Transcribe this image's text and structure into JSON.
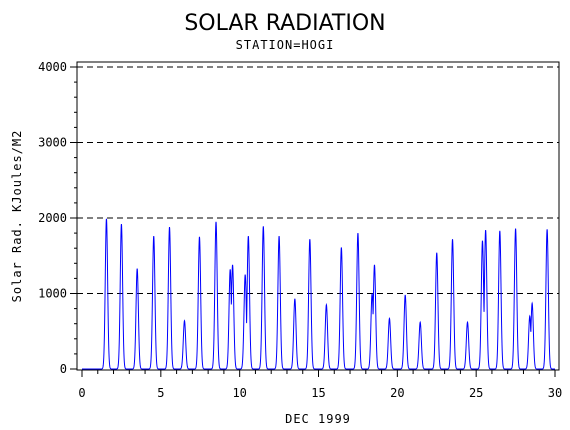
{
  "chart_data": {
    "type": "line",
    "title": "SOLAR RADIATION",
    "subtitle": "STATION=HOGI",
    "xlabel": "DEC 1999",
    "ylabel": "Solar Rad. KJoules/M2",
    "xlim": [
      0,
      30
    ],
    "ylim": [
      0,
      4000
    ],
    "x_ticks": [
      "0",
      "5",
      "10",
      "15",
      "20",
      "25",
      "30"
    ],
    "y_ticks": [
      "0",
      "1000",
      "2000",
      "3000",
      "4000"
    ],
    "reference_lines": [
      1000,
      2000,
      3000,
      4000
    ],
    "line_color": "#0000ff",
    "daily_peaks": [
      {
        "day": 1,
        "peaks": [
          [
            0.55,
            1990
          ]
        ]
      },
      {
        "day": 2,
        "peaks": [
          [
            0.5,
            1920
          ]
        ]
      },
      {
        "day": 3,
        "peaks": [
          [
            0.5,
            1330
          ]
        ]
      },
      {
        "day": 4,
        "peaks": [
          [
            0.55,
            1760
          ]
        ]
      },
      {
        "day": 5,
        "peaks": [
          [
            0.55,
            1880
          ]
        ]
      },
      {
        "day": 6,
        "peaks": [
          [
            0.5,
            640
          ]
        ]
      },
      {
        "day": 7,
        "peaks": [
          [
            0.45,
            1750
          ]
        ]
      },
      {
        "day": 8,
        "peaks": [
          [
            0.5,
            1950
          ]
        ]
      },
      {
        "day": 9,
        "peaks": [
          [
            0.4,
            1320
          ],
          [
            0.55,
            1380
          ]
        ]
      },
      {
        "day": 10,
        "peaks": [
          [
            0.35,
            1250
          ],
          [
            0.55,
            1760
          ]
        ]
      },
      {
        "day": 11,
        "peaks": [
          [
            0.5,
            1890
          ]
        ]
      },
      {
        "day": 12,
        "peaks": [
          [
            0.5,
            1760
          ]
        ]
      },
      {
        "day": 13,
        "peaks": [
          [
            0.5,
            930
          ]
        ]
      },
      {
        "day": 14,
        "peaks": [
          [
            0.45,
            1720
          ]
        ]
      },
      {
        "day": 15,
        "peaks": [
          [
            0.5,
            850
          ]
        ]
      },
      {
        "day": 16,
        "peaks": [
          [
            0.45,
            1610
          ]
        ]
      },
      {
        "day": 17,
        "peaks": [
          [
            0.5,
            1800
          ]
        ]
      },
      {
        "day": 18,
        "peaks": [
          [
            0.4,
            1000
          ],
          [
            0.55,
            1380
          ]
        ]
      },
      {
        "day": 19,
        "peaks": [
          [
            0.5,
            670
          ]
        ]
      },
      {
        "day": 20,
        "peaks": [
          [
            0.5,
            980
          ]
        ]
      },
      {
        "day": 21,
        "peaks": [
          [
            0.45,
            620
          ]
        ]
      },
      {
        "day": 22,
        "peaks": [
          [
            0.5,
            1540
          ]
        ]
      },
      {
        "day": 23,
        "peaks": [
          [
            0.5,
            1720
          ]
        ]
      },
      {
        "day": 24,
        "peaks": [
          [
            0.45,
            620
          ]
        ]
      },
      {
        "day": 25,
        "peaks": [
          [
            0.4,
            1700
          ],
          [
            0.6,
            1840
          ]
        ]
      },
      {
        "day": 26,
        "peaks": [
          [
            0.5,
            1830
          ]
        ]
      },
      {
        "day": 27,
        "peaks": [
          [
            0.5,
            1860
          ]
        ]
      },
      {
        "day": 28,
        "peaks": [
          [
            0.4,
            700
          ],
          [
            0.55,
            870
          ]
        ]
      },
      {
        "day": 29,
        "peaks": [
          [
            0.5,
            1850
          ]
        ]
      }
    ]
  }
}
